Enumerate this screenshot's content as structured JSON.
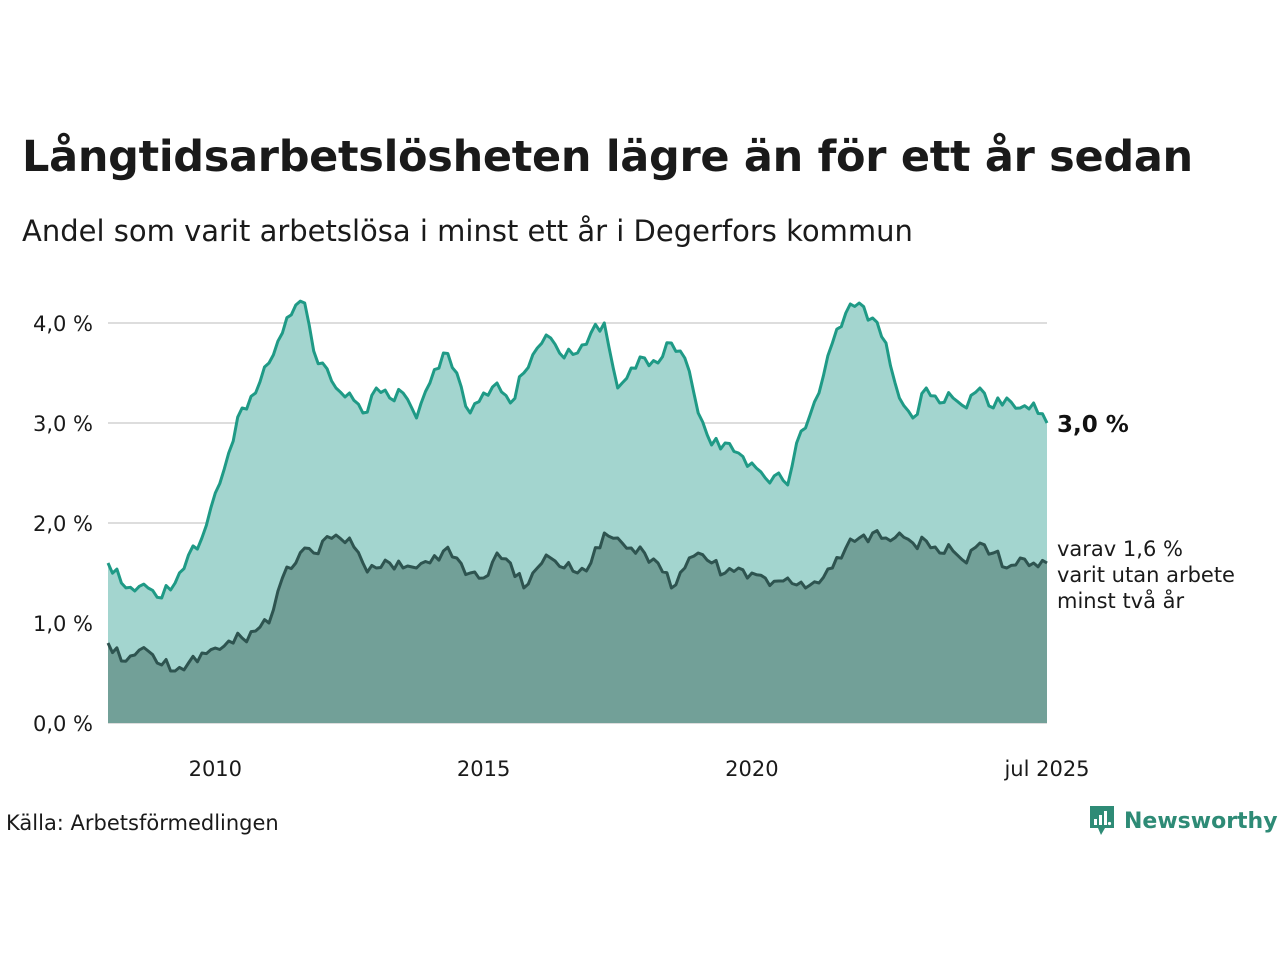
{
  "header": {
    "title": "Långtidsarbetslösheten lägre än för ett år sedan",
    "subtitle": "Andel som varit arbetslösa i minst ett år i Degerfors kommun"
  },
  "footer": {
    "source": "Källa: Arbetsförmedlingen",
    "brand": "Newsworthy",
    "brand_icon": "newsworthy-logo-icon"
  },
  "colors": {
    "total_fill": "#a3d5cf",
    "total_line": "#1f9a86",
    "long_fill": "#72a098",
    "long_line": "#2e5450",
    "grid": "#dddddd",
    "brand": "#2e8b76"
  },
  "chart_data": {
    "type": "area",
    "x_start": "2008-01",
    "x_end": "2025-07",
    "ylim": [
      0,
      4.5
    ],
    "yticks": [
      {
        "value": 0,
        "label": "0,0 %"
      },
      {
        "value": 1,
        "label": "1,0 %"
      },
      {
        "value": 2,
        "label": "2,0 %"
      },
      {
        "value": 3,
        "label": "3,0 %"
      },
      {
        "value": 4,
        "label": "4,0 %"
      }
    ],
    "xticks": [
      {
        "value": "2010-01",
        "label": "2010"
      },
      {
        "value": "2015-01",
        "label": "2015"
      },
      {
        "value": "2020-01",
        "label": "2020"
      },
      {
        "value": "2025-07",
        "label": "jul 2025"
      }
    ],
    "grid": true,
    "series": [
      {
        "key": "total",
        "end_label": "3,0 %",
        "points": [
          [
            "2008-01",
            1.6
          ],
          [
            "2008-04",
            1.4
          ],
          [
            "2008-07",
            1.32
          ],
          [
            "2008-10",
            1.35
          ],
          [
            "2009-01",
            1.25
          ],
          [
            "2009-04",
            1.4
          ],
          [
            "2009-07",
            1.68
          ],
          [
            "2009-10",
            1.85
          ],
          [
            "2010-01",
            2.3
          ],
          [
            "2010-04",
            2.7
          ],
          [
            "2010-07",
            3.15
          ],
          [
            "2010-10",
            3.3
          ],
          [
            "2011-01",
            3.6
          ],
          [
            "2011-04",
            3.9
          ],
          [
            "2011-07",
            4.18
          ],
          [
            "2011-09",
            4.2
          ],
          [
            "2011-11",
            3.72
          ],
          [
            "2012-01",
            3.6
          ],
          [
            "2012-04",
            3.35
          ],
          [
            "2012-07",
            3.3
          ],
          [
            "2012-10",
            3.1
          ],
          [
            "2013-01",
            3.35
          ],
          [
            "2013-04",
            3.25
          ],
          [
            "2013-07",
            3.3
          ],
          [
            "2013-10",
            3.05
          ],
          [
            "2014-01",
            3.4
          ],
          [
            "2014-04",
            3.7
          ],
          [
            "2014-07",
            3.5
          ],
          [
            "2014-10",
            3.1
          ],
          [
            "2015-01",
            3.3
          ],
          [
            "2015-04",
            3.4
          ],
          [
            "2015-07",
            3.2
          ],
          [
            "2015-10",
            3.5
          ],
          [
            "2016-01",
            3.75
          ],
          [
            "2016-04",
            3.85
          ],
          [
            "2016-07",
            3.65
          ],
          [
            "2016-10",
            3.7
          ],
          [
            "2017-01",
            3.9
          ],
          [
            "2017-04",
            4.0
          ],
          [
            "2017-07",
            3.35
          ],
          [
            "2017-10",
            3.55
          ],
          [
            "2018-01",
            3.65
          ],
          [
            "2018-04",
            3.6
          ],
          [
            "2018-07",
            3.8
          ],
          [
            "2018-10",
            3.65
          ],
          [
            "2019-01",
            3.1
          ],
          [
            "2019-04",
            2.78
          ],
          [
            "2019-07",
            2.8
          ],
          [
            "2019-10",
            2.7
          ],
          [
            "2020-01",
            2.6
          ],
          [
            "2020-04",
            2.45
          ],
          [
            "2020-07",
            2.5
          ],
          [
            "2020-09",
            2.38
          ],
          [
            "2020-11",
            2.8
          ],
          [
            "2021-01",
            2.95
          ],
          [
            "2021-04",
            3.3
          ],
          [
            "2021-07",
            3.8
          ],
          [
            "2021-10",
            4.1
          ],
          [
            "2022-01",
            4.2
          ],
          [
            "2022-04",
            4.05
          ],
          [
            "2022-07",
            3.8
          ],
          [
            "2022-10",
            3.25
          ],
          [
            "2023-01",
            3.05
          ],
          [
            "2023-04",
            3.35
          ],
          [
            "2023-07",
            3.2
          ],
          [
            "2023-10",
            3.25
          ],
          [
            "2024-01",
            3.15
          ],
          [
            "2024-04",
            3.35
          ],
          [
            "2024-07",
            3.15
          ],
          [
            "2024-10",
            3.25
          ],
          [
            "2025-01",
            3.15
          ],
          [
            "2025-04",
            3.2
          ],
          [
            "2025-07",
            3.0
          ]
        ]
      },
      {
        "key": "long",
        "end_label": [
          "varav 1,6 %",
          "varit utan arbete",
          "minst två år"
        ],
        "points": [
          [
            "2008-01",
            0.8
          ],
          [
            "2008-04",
            0.62
          ],
          [
            "2008-07",
            0.68
          ],
          [
            "2008-10",
            0.72
          ],
          [
            "2009-01",
            0.58
          ],
          [
            "2009-04",
            0.52
          ],
          [
            "2009-07",
            0.6
          ],
          [
            "2009-10",
            0.7
          ],
          [
            "2010-01",
            0.75
          ],
          [
            "2010-04",
            0.82
          ],
          [
            "2010-07",
            0.85
          ],
          [
            "2010-10",
            0.92
          ],
          [
            "2011-01",
            1.0
          ],
          [
            "2011-04",
            1.45
          ],
          [
            "2011-07",
            1.6
          ],
          [
            "2011-09",
            1.75
          ],
          [
            "2011-11",
            1.7
          ],
          [
            "2012-01",
            1.82
          ],
          [
            "2012-04",
            1.88
          ],
          [
            "2012-07",
            1.85
          ],
          [
            "2012-10",
            1.6
          ],
          [
            "2013-01",
            1.55
          ],
          [
            "2013-04",
            1.6
          ],
          [
            "2013-07",
            1.55
          ],
          [
            "2013-10",
            1.55
          ],
          [
            "2014-01",
            1.6
          ],
          [
            "2014-04",
            1.72
          ],
          [
            "2014-07",
            1.65
          ],
          [
            "2014-10",
            1.5
          ],
          [
            "2015-01",
            1.45
          ],
          [
            "2015-04",
            1.7
          ],
          [
            "2015-07",
            1.6
          ],
          [
            "2015-10",
            1.35
          ],
          [
            "2016-01",
            1.55
          ],
          [
            "2016-04",
            1.65
          ],
          [
            "2016-07",
            1.55
          ],
          [
            "2016-10",
            1.5
          ],
          [
            "2017-01",
            1.6
          ],
          [
            "2017-04",
            1.9
          ],
          [
            "2017-07",
            1.85
          ],
          [
            "2017-10",
            1.75
          ],
          [
            "2018-01",
            1.7
          ],
          [
            "2018-04",
            1.6
          ],
          [
            "2018-07",
            1.35
          ],
          [
            "2018-10",
            1.55
          ],
          [
            "2019-01",
            1.7
          ],
          [
            "2019-04",
            1.6
          ],
          [
            "2019-07",
            1.5
          ],
          [
            "2019-10",
            1.55
          ],
          [
            "2020-01",
            1.5
          ],
          [
            "2020-04",
            1.45
          ],
          [
            "2020-07",
            1.42
          ],
          [
            "2020-09",
            1.45
          ],
          [
            "2020-11",
            1.38
          ],
          [
            "2021-01",
            1.35
          ],
          [
            "2021-04",
            1.4
          ],
          [
            "2021-07",
            1.55
          ],
          [
            "2021-10",
            1.75
          ],
          [
            "2022-01",
            1.85
          ],
          [
            "2022-04",
            1.9
          ],
          [
            "2022-07",
            1.85
          ],
          [
            "2022-10",
            1.9
          ],
          [
            "2023-01",
            1.8
          ],
          [
            "2023-04",
            1.82
          ],
          [
            "2023-07",
            1.7
          ],
          [
            "2023-10",
            1.72
          ],
          [
            "2024-01",
            1.6
          ],
          [
            "2024-04",
            1.8
          ],
          [
            "2024-07",
            1.7
          ],
          [
            "2024-10",
            1.55
          ],
          [
            "2025-01",
            1.65
          ],
          [
            "2025-04",
            1.6
          ],
          [
            "2025-07",
            1.6
          ]
        ]
      }
    ]
  }
}
